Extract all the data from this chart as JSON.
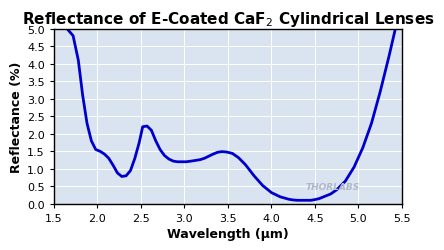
{
  "title": "Reflectance of E-Coated CaF$_2$ Cylindrical Lenses",
  "xlabel": "Wavelength (μm)",
  "ylabel": "Reflectance (%)",
  "xlim": [
    1.5,
    5.5
  ],
  "ylim": [
    0.0,
    5.0
  ],
  "xticks": [
    1.5,
    2.0,
    2.5,
    3.0,
    3.5,
    4.0,
    4.5,
    5.0,
    5.5
  ],
  "yticks": [
    0.0,
    0.5,
    1.0,
    1.5,
    2.0,
    2.5,
    3.0,
    3.5,
    4.0,
    4.5,
    5.0
  ],
  "line_color": "#0000cc",
  "fig_bg": "#ffffff",
  "plot_bg": "#d9e4f0",
  "grid_color": "#ffffff",
  "spine_color": "#000000",
  "tick_color": "#000000",
  "watermark": "THORLABS",
  "watermark_color": "#b0b8c8",
  "title_fontsize": 11,
  "label_fontsize": 9,
  "tick_fontsize": 8,
  "curve_x": [
    1.65,
    1.72,
    1.78,
    1.83,
    1.88,
    1.93,
    1.98,
    2.03,
    2.08,
    2.13,
    2.18,
    2.23,
    2.28,
    2.33,
    2.38,
    2.43,
    2.48,
    2.52,
    2.57,
    2.62,
    2.67,
    2.72,
    2.77,
    2.82,
    2.87,
    2.92,
    2.97,
    3.02,
    3.08,
    3.13,
    3.18,
    3.23,
    3.28,
    3.33,
    3.38,
    3.43,
    3.48,
    3.55,
    3.62,
    3.7,
    3.8,
    3.9,
    4.0,
    4.1,
    4.2,
    4.25,
    4.3,
    4.35,
    4.4,
    4.45,
    4.5,
    4.55,
    4.6,
    4.68,
    4.75,
    4.85,
    4.95,
    5.05,
    5.15,
    5.25,
    5.35,
    5.42
  ],
  "curve_y": [
    5.0,
    4.8,
    4.1,
    3.1,
    2.3,
    1.8,
    1.55,
    1.5,
    1.42,
    1.3,
    1.1,
    0.88,
    0.78,
    0.8,
    0.95,
    1.3,
    1.75,
    2.2,
    2.22,
    2.1,
    1.8,
    1.55,
    1.38,
    1.28,
    1.22,
    1.2,
    1.2,
    1.2,
    1.22,
    1.24,
    1.26,
    1.3,
    1.36,
    1.42,
    1.47,
    1.49,
    1.48,
    1.44,
    1.32,
    1.12,
    0.8,
    0.52,
    0.32,
    0.2,
    0.13,
    0.11,
    0.1,
    0.1,
    0.1,
    0.1,
    0.12,
    0.15,
    0.2,
    0.28,
    0.4,
    0.65,
    1.05,
    1.6,
    2.3,
    3.2,
    4.2,
    4.95
  ]
}
